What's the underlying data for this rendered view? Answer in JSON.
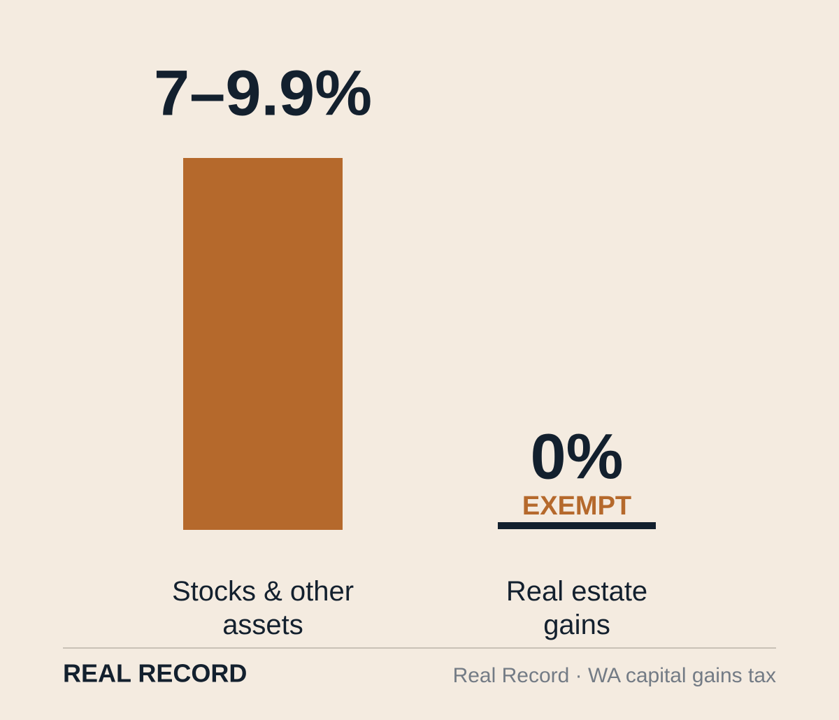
{
  "chart_data": {
    "type": "bar",
    "categories": [
      "Stocks & other assets",
      "Real estate gains"
    ],
    "values": [
      9.9,
      0
    ],
    "value_labels": [
      "7–9.9%",
      "0%"
    ],
    "value_notes": [
      null,
      "EXEMPT"
    ],
    "ylim": [
      0,
      9.9
    ],
    "color": "#b5692c",
    "zero_color": "#13202e",
    "brand": "REAL RECORD",
    "source": "Real Record · WA capital gains tax"
  }
}
